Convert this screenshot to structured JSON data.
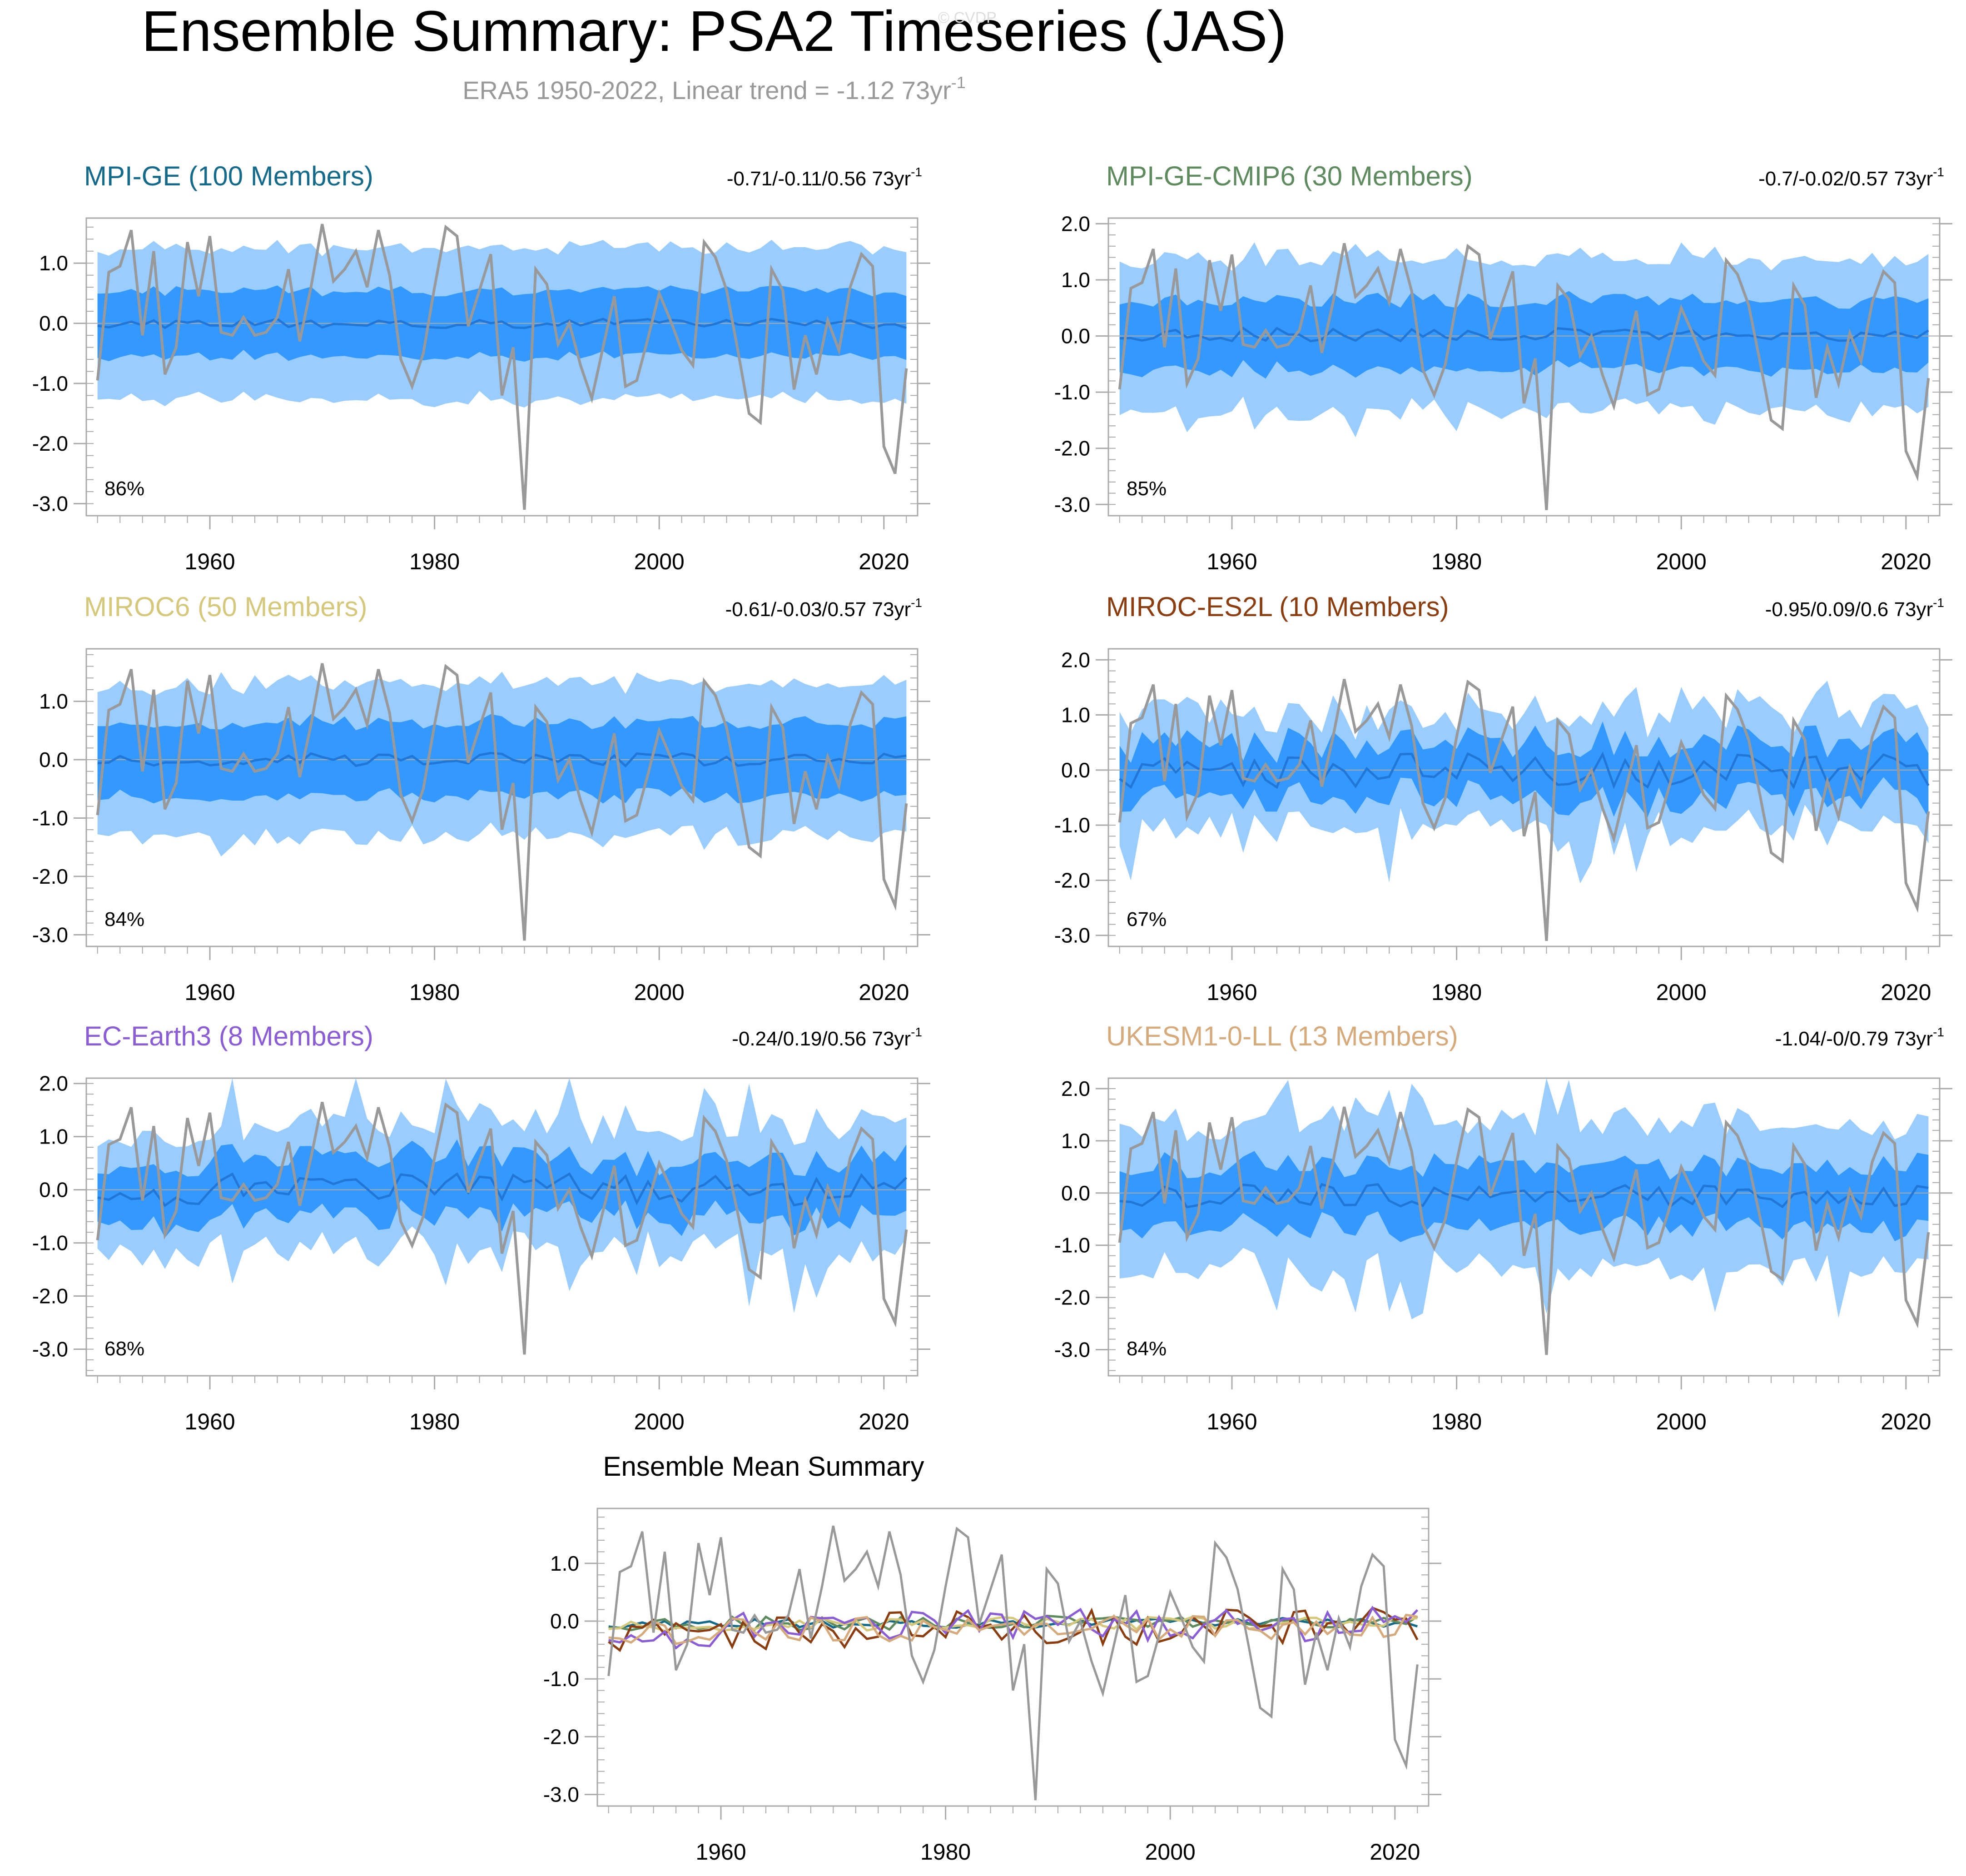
{
  "figure": {
    "title": "Ensemble Summary: PSA2 Timeseries (JAS)",
    "subtitle": "ERA5 1950-2022, Linear trend = -1.12 73yr",
    "subtitle_sup": "-1",
    "watermark": "© CVDP"
  },
  "colors": {
    "title": "#000000",
    "subtitle": "#999999",
    "watermark": "#dddddd",
    "band_outer": "#99ccff",
    "band_inner": "#3399ff",
    "ens_mean": "#2276d6",
    "observed": "#999999",
    "zero_line": "#aaaaaa",
    "frame": "#aaaaaa"
  },
  "chart_data": [
    {
      "type": "line",
      "id": "p1",
      "title": "MPI-GE (100 Members)",
      "title_color": "#136a8a",
      "trend_text": "-0.71/-0.11/0.56 73yr",
      "trend_sup": "-1",
      "percent_label": "86%",
      "x_range": [
        1949,
        2023
      ],
      "ylim": [
        -3.2,
        1.75
      ],
      "y_ticks": [
        1.0,
        0.0,
        -1.0,
        -2.0,
        -3.0
      ],
      "y_tick_labels": [
        "1.0",
        "0.0",
        "-1.0",
        "-2.0",
        "-3.0"
      ],
      "x_ticks": [
        1960,
        1980,
        2000,
        2020
      ],
      "x_tick_labels": [
        "1960",
        "1980",
        "2000",
        "2020"
      ],
      "series": [
        {
          "name": "ensemble 90% range",
          "style": "band_outer",
          "params": {
            "seed": 11,
            "mean": 0.0,
            "noise": 0.08,
            "inner": 0.55,
            "outer": 1.25,
            "spread": 0.12,
            "extreme": 0.0
          }
        },
        {
          "name": "ensemble 70% range",
          "style": "band_inner"
        },
        {
          "name": "ensemble mean",
          "style": "ens_mean"
        },
        {
          "name": "ERA5",
          "style": "observed"
        }
      ]
    },
    {
      "type": "line",
      "id": "p2",
      "title": "MPI-GE-CMIP6 (30 Members)",
      "title_color": "#5e8b5e",
      "trend_text": "-0.7/-0.02/0.57 73yr",
      "trend_sup": "-1",
      "percent_label": "85%",
      "x_range": [
        1949,
        2023
      ],
      "ylim": [
        -3.2,
        2.1
      ],
      "y_ticks": [
        2.0,
        1.0,
        0.0,
        -1.0,
        -2.0,
        -3.0
      ],
      "y_tick_labels": [
        "2.0",
        "1.0",
        "0.0",
        "-1.0",
        "-2.0",
        "-3.0"
      ],
      "x_ticks": [
        1960,
        1980,
        2000,
        2020
      ],
      "x_tick_labels": [
        "1960",
        "1980",
        "2000",
        "2020"
      ],
      "series": [
        {
          "name": "ensemble 90% range",
          "style": "band_outer",
          "params": {
            "seed": 23,
            "mean": 0.02,
            "noise": 0.12,
            "inner": 0.62,
            "outer": 1.35,
            "spread": 0.2,
            "extreme": 0.3
          }
        },
        {
          "name": "ensemble 70% range",
          "style": "band_inner"
        },
        {
          "name": "ensemble mean",
          "style": "ens_mean"
        },
        {
          "name": "ERA5",
          "style": "observed"
        }
      ]
    },
    {
      "type": "line",
      "id": "p3",
      "title": "MIROC6 (50 Members)",
      "title_color": "#d6c87a",
      "trend_text": "-0.61/-0.03/0.57 73yr",
      "trend_sup": "-1",
      "percent_label": "84%",
      "x_range": [
        1949,
        2023
      ],
      "ylim": [
        -3.2,
        1.9
      ],
      "y_ticks": [
        1.0,
        0.0,
        -1.0,
        -2.0,
        -3.0
      ],
      "y_tick_labels": [
        "1.0",
        "0.0",
        "-1.0",
        "-2.0",
        "-3.0"
      ],
      "x_ticks": [
        1960,
        1980,
        2000,
        2020
      ],
      "x_tick_labels": [
        "1960",
        "1980",
        "2000",
        "2020"
      ],
      "series": [
        {
          "name": "ensemble 90% range",
          "style": "band_outer",
          "params": {
            "seed": 37,
            "mean": 0.0,
            "noise": 0.12,
            "inner": 0.62,
            "outer": 1.3,
            "spread": 0.18,
            "extreme": 0.2
          }
        },
        {
          "name": "ensemble 70% range",
          "style": "band_inner"
        },
        {
          "name": "ensemble mean",
          "style": "ens_mean"
        },
        {
          "name": "ERA5",
          "style": "observed"
        }
      ]
    },
    {
      "type": "line",
      "id": "p4",
      "title": "MIROC-ES2L (10 Members)",
      "title_color": "#8b3d0f",
      "trend_text": "-0.95/0.09/0.6 73yr",
      "trend_sup": "-1",
      "percent_label": "67%",
      "x_range": [
        1949,
        2023
      ],
      "ylim": [
        -3.2,
        2.2
      ],
      "y_ticks": [
        2.0,
        1.0,
        0.0,
        -1.0,
        -2.0,
        -3.0
      ],
      "y_tick_labels": [
        "2.0",
        "1.0",
        "0.0",
        "-1.0",
        "-2.0",
        "-3.0"
      ],
      "x_ticks": [
        1960,
        1980,
        2000,
        2020
      ],
      "x_tick_labels": [
        "1960",
        "1980",
        "2000",
        "2020"
      ],
      "series": [
        {
          "name": "ensemble 90% range",
          "style": "band_outer",
          "params": {
            "seed": 41,
            "mean": 0.0,
            "noise": 0.32,
            "inner": 0.5,
            "outer": 1.05,
            "spread": 0.4,
            "extreme": 0.7
          }
        },
        {
          "name": "ensemble 70% range",
          "style": "band_inner"
        },
        {
          "name": "ensemble mean",
          "style": "ens_mean"
        },
        {
          "name": "ERA5",
          "style": "observed"
        }
      ]
    },
    {
      "type": "line",
      "id": "p5",
      "title": "EC-Earth3 (8 Members)",
      "title_color": "#8a5cd6",
      "trend_text": "-0.24/0.19/0.56 73yr",
      "trend_sup": "-1",
      "percent_label": "68%",
      "x_range": [
        1949,
        2023
      ],
      "ylim": [
        -3.5,
        2.1
      ],
      "y_ticks": [
        2.0,
        1.0,
        0.0,
        -1.0,
        -2.0,
        -3.0
      ],
      "y_tick_labels": [
        "2.0",
        "1.0",
        "0.0",
        "-1.0",
        "-2.0",
        "-3.0"
      ],
      "x_ticks": [
        1960,
        1980,
        2000,
        2020
      ],
      "x_tick_labels": [
        "1960",
        "1980",
        "2000",
        "2020"
      ],
      "series": [
        {
          "name": "ensemble 90% range",
          "style": "band_outer",
          "params": {
            "seed": 53,
            "mean": 0.0,
            "noise": 0.3,
            "inner": 0.55,
            "outer": 1.15,
            "spread": 0.42,
            "extreme": 0.9
          }
        },
        {
          "name": "ensemble 70% range",
          "style": "band_inner"
        },
        {
          "name": "ensemble mean",
          "style": "ens_mean"
        },
        {
          "name": "ERA5",
          "style": "observed"
        }
      ]
    },
    {
      "type": "line",
      "id": "p6",
      "title": "UKESM1-0-LL (13 Members)",
      "title_color": "#d6aa7a",
      "trend_text": "-1.04/-0/0.79 73yr",
      "trend_sup": "-1",
      "percent_label": "84%",
      "x_range": [
        1949,
        2023
      ],
      "ylim": [
        -3.5,
        2.2
      ],
      "y_ticks": [
        2.0,
        1.0,
        0.0,
        -1.0,
        -2.0,
        -3.0
      ],
      "y_tick_labels": [
        "2.0",
        "1.0",
        "0.0",
        "-1.0",
        "-2.0",
        "-3.0"
      ],
      "x_ticks": [
        1960,
        1980,
        2000,
        2020
      ],
      "x_tick_labels": [
        "1960",
        "1980",
        "2000",
        "2020"
      ],
      "series": [
        {
          "name": "ensemble 90% range",
          "style": "band_outer",
          "params": {
            "seed": 67,
            "mean": -0.05,
            "noise": 0.22,
            "inner": 0.6,
            "outer": 1.4,
            "spread": 0.3,
            "extreme": 0.8
          }
        },
        {
          "name": "ensemble 70% range",
          "style": "band_inner"
        },
        {
          "name": "ensemble mean",
          "style": "ens_mean"
        },
        {
          "name": "ERA5",
          "style": "observed"
        }
      ]
    },
    {
      "type": "line",
      "id": "p7",
      "title": "Ensemble Mean Summary",
      "title_color": "#000000",
      "x_range": [
        1949,
        2023
      ],
      "ylim": [
        -3.2,
        1.95
      ],
      "y_ticks": [
        1.0,
        0.0,
        -1.0,
        -2.0,
        -3.0
      ],
      "y_tick_labels": [
        "1.0",
        "0.0",
        "-1.0",
        "-2.0",
        "-3.0"
      ],
      "x_ticks": [
        1960,
        1980,
        2000,
        2020
      ],
      "x_tick_labels": [
        "1960",
        "1980",
        "2000",
        "2020"
      ],
      "series": [
        {
          "name": "MPI-GE",
          "color": "#136a8a",
          "params": {
            "seed": 11,
            "mean": 0.0,
            "noise": 0.08
          }
        },
        {
          "name": "MPI-GE-CMIP6",
          "color": "#5e8b5e",
          "params": {
            "seed": 23,
            "mean": 0.02,
            "noise": 0.12
          }
        },
        {
          "name": "MIROC6",
          "color": "#d6c87a",
          "params": {
            "seed": 37,
            "mean": 0.0,
            "noise": 0.12
          }
        },
        {
          "name": "MIROC-ES2L",
          "color": "#8b3d0f",
          "params": {
            "seed": 41,
            "mean": 0.0,
            "noise": 0.32
          }
        },
        {
          "name": "EC-Earth3",
          "color": "#8a5cd6",
          "params": {
            "seed": 53,
            "mean": 0.0,
            "noise": 0.3
          }
        },
        {
          "name": "UKESM1-0-LL",
          "color": "#d6aa7a",
          "params": {
            "seed": 67,
            "mean": -0.05,
            "noise": 0.22
          }
        },
        {
          "name": "ERA5",
          "color": "#999999",
          "style": "observed"
        }
      ]
    }
  ],
  "observed_era5": {
    "x_start": 1950,
    "values": [
      -0.95,
      0.85,
      0.95,
      1.55,
      -0.2,
      1.2,
      -0.85,
      -0.4,
      1.35,
      0.45,
      1.45,
      -0.15,
      -0.2,
      0.1,
      -0.2,
      -0.15,
      0.1,
      0.9,
      -0.3,
      0.6,
      1.65,
      0.7,
      0.9,
      1.2,
      0.6,
      1.55,
      0.8,
      -0.6,
      -1.05,
      -0.5,
      0.6,
      1.6,
      1.45,
      -0.05,
      0.55,
      1.15,
      -1.2,
      -0.4,
      -3.1,
      0.9,
      0.65,
      -0.35,
      0.0,
      -0.7,
      -1.25,
      -0.4,
      0.45,
      -1.05,
      -0.95,
      -0.25,
      0.5,
      0.05,
      -0.45,
      -0.7,
      1.35,
      1.1,
      0.55,
      -0.45,
      -1.5,
      -1.65,
      0.9,
      0.55,
      -1.1,
      -0.2,
      -0.85,
      0.05,
      -0.45,
      0.6,
      1.15,
      0.95,
      -2.05,
      -2.5,
      -0.75
    ]
  }
}
